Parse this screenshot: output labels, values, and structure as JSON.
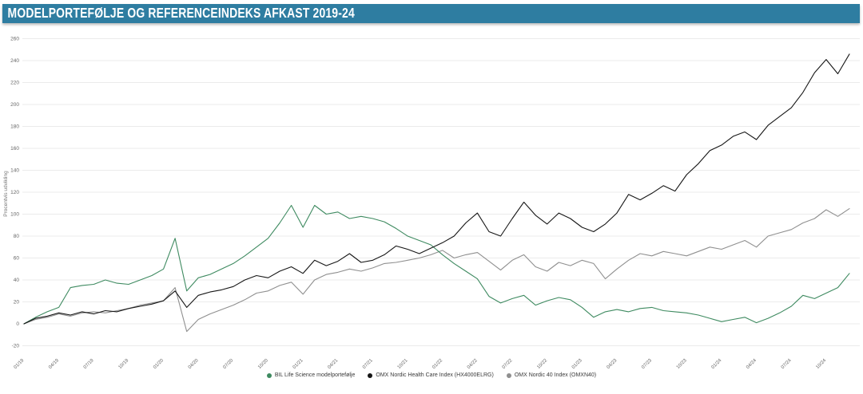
{
  "title": "MODELPORTEFØLJE OG REFERENCEINDEKS AFKAST 2019-24",
  "colors": {
    "title_bar": "#2e7da1",
    "title_text": "#ffffff",
    "background": "#ffffff",
    "gridline": "#ebebeb",
    "axis_text": "#666666",
    "series_green": "#3e8a60",
    "series_black": "#161616",
    "series_gray": "#8f8f8f"
  },
  "chart_data": {
    "type": "line",
    "title": "MODELPORTEFØLJE OG REFERENCEINDEKS AFKAST 2019-24",
    "xlabel": "",
    "ylabel": "Procentvis udvikling",
    "ylim": [
      -20,
      260
    ],
    "ytick_step": 20,
    "y_ticks": [
      260,
      240,
      220,
      200,
      180,
      160,
      140,
      120,
      100,
      80,
      60,
      40,
      20,
      0,
      -20
    ],
    "grid": "horizontal",
    "legend_position": "bottom-center",
    "x_frequency": "monthly",
    "x_range": "01/2019 - 12/2024",
    "x_tick_labels": [
      "01/19",
      "04/19",
      "07/19",
      "10/19",
      "01/20",
      "04/20",
      "07/20",
      "10/20",
      "01/21",
      "04/21",
      "07/21",
      "10/21",
      "01/22",
      "04/22",
      "07/22",
      "10/22",
      "01/23",
      "04/23",
      "07/23",
      "10/23",
      "01/24",
      "04/24",
      "07/24",
      "10/24"
    ],
    "series": [
      {
        "name": "BIL Life Science modelportefølje",
        "color": "#3e8a60",
        "values": [
          0,
          6,
          11,
          15,
          33,
          35,
          36,
          40,
          37,
          36,
          40,
          44,
          50,
          78,
          30,
          42,
          45,
          50,
          55,
          62,
          70,
          78,
          92,
          108,
          88,
          108,
          100,
          102,
          96,
          98,
          96,
          93,
          87,
          80,
          76,
          72,
          63,
          55,
          48,
          41,
          25,
          19,
          23,
          26,
          17,
          21,
          24,
          22,
          15,
          6,
          11,
          13,
          11,
          14,
          15,
          12,
          11,
          10,
          8,
          5,
          2,
          4,
          6,
          1,
          5,
          10,
          16,
          26,
          23,
          28,
          33,
          46
        ]
      },
      {
        "name": "OMX Nordic Health Care Index (HX4000ELRG)",
        "color": "#161616",
        "values": [
          0,
          5,
          7,
          10,
          8,
          11,
          9,
          12,
          11,
          14,
          16,
          18,
          21,
          30,
          15,
          26,
          29,
          31,
          34,
          40,
          44,
          42,
          48,
          52,
          46,
          58,
          53,
          57,
          64,
          56,
          58,
          63,
          71,
          68,
          64,
          69,
          74,
          80,
          92,
          101,
          84,
          80,
          96,
          111,
          99,
          91,
          101,
          96,
          88,
          84,
          91,
          101,
          118,
          113,
          119,
          126,
          121,
          136,
          146,
          158,
          163,
          171,
          175,
          168,
          181,
          189,
          197,
          211,
          229,
          241,
          228,
          246
        ]
      },
      {
        "name": "OMX Nordic 40 Index (OMXN40)",
        "color": "#8f8f8f",
        "values": [
          0,
          4,
          6,
          9,
          7,
          10,
          11,
          10,
          12,
          14,
          17,
          19,
          21,
          33,
          -7,
          4,
          9,
          13,
          17,
          22,
          28,
          30,
          35,
          38,
          27,
          40,
          45,
          47,
          50,
          48,
          51,
          55,
          56,
          58,
          60,
          63,
          67,
          60,
          63,
          65,
          57,
          49,
          58,
          63,
          52,
          48,
          56,
          53,
          58,
          55,
          41,
          50,
          58,
          64,
          62,
          66,
          64,
          62,
          66,
          70,
          68,
          72,
          76,
          70,
          80,
          83,
          86,
          92,
          96,
          104,
          98,
          105
        ]
      }
    ]
  }
}
